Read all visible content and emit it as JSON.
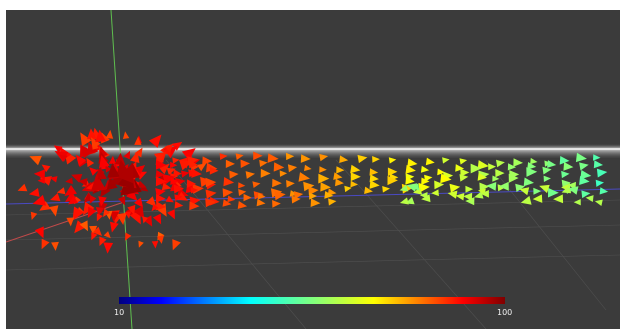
{
  "viewer": {
    "background": "#3b3b3b",
    "colorbar": {
      "min_label": "10",
      "max_label": "100",
      "colormap": "jet"
    }
  },
  "axes": {
    "x_color": "#c24a4a",
    "y_color": "#5fbf4f",
    "z_color": "#4a4ac2"
  },
  "icons": [
    "arrow-glyph-icon"
  ]
}
